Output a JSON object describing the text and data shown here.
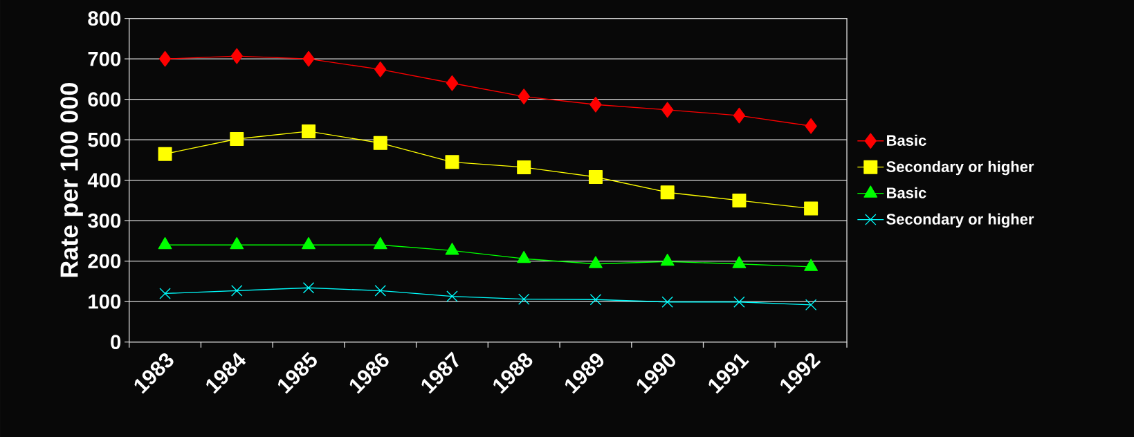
{
  "chart_data": {
    "type": "line",
    "ylabel": "Rate per 100 000",
    "categories": [
      "1983",
      "1984",
      "1985",
      "1986",
      "1987",
      "1988",
      "1989",
      "1990",
      "1991",
      "1992"
    ],
    "series": [
      {
        "name": "Basic",
        "color": "#ff0000",
        "marker": "diamond",
        "values": [
          700,
          707,
          700,
          674,
          640,
          607,
          587,
          574,
          560,
          534
        ]
      },
      {
        "name": "Secondary or higher",
        "color": "#ffff00",
        "marker": "square",
        "values": [
          465,
          502,
          521,
          492,
          445,
          432,
          408,
          370,
          350,
          330
        ]
      },
      {
        "name": "Basic",
        "color": "#00ff00",
        "marker": "triangle",
        "values": [
          240,
          240,
          240,
          240,
          226,
          206,
          193,
          199,
          193,
          186
        ]
      },
      {
        "name": "Secondary or higher",
        "color": "#00ffff",
        "marker": "cross",
        "values": [
          120,
          127,
          134,
          127,
          113,
          106,
          105,
          99,
          99,
          92
        ]
      }
    ],
    "ylim": [
      0,
      800
    ],
    "yticks": [
      0,
      100,
      200,
      300,
      400,
      500,
      600,
      700,
      800
    ],
    "grid": "y",
    "legend": "right",
    "line_style": "solid"
  }
}
